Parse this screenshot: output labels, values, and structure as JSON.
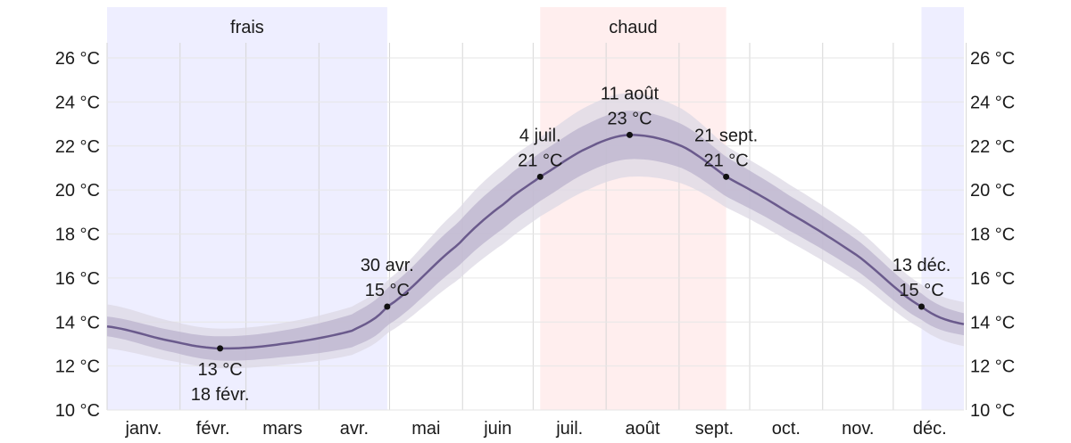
{
  "chart_data": {
    "type": "area",
    "title": "",
    "xlabel": "",
    "ylabel": "",
    "y_unit": "°C",
    "ylim": [
      10,
      26
    ],
    "y_ticks": [
      {
        "value": 10,
        "label": "10 °C"
      },
      {
        "value": 12,
        "label": "12 °C"
      },
      {
        "value": 14,
        "label": "14 °C"
      },
      {
        "value": 16,
        "label": "16 °C"
      },
      {
        "value": 18,
        "label": "18 °C"
      },
      {
        "value": 20,
        "label": "20 °C"
      },
      {
        "value": 22,
        "label": "22 °C"
      },
      {
        "value": 24,
        "label": "24 °C"
      },
      {
        "value": 26,
        "label": "26 °C"
      }
    ],
    "months": [
      "janv.",
      "févr.",
      "mars",
      "avr.",
      "mai",
      "juin",
      "juil.",
      "août",
      "sept.",
      "oct.",
      "nov.",
      "déc."
    ],
    "seasons": [
      {
        "name": "frais",
        "start_day": 1,
        "end_day": 120,
        "color": "#eeeeff",
        "label": "frais"
      },
      {
        "name": "chaud",
        "start_day": 185,
        "end_day": 264,
        "color": "#ffeeee",
        "label": "chaud"
      },
      {
        "name": "frais",
        "start_day": 347,
        "end_day": 365,
        "color": "#eeeeff",
        "label": ""
      }
    ],
    "series": [
      {
        "name": "",
        "color": "#6a5a8c",
        "x_day": [
          1,
          30,
          49,
          75,
          105,
          120,
          150,
          170,
          185,
          205,
          223,
          245,
          264,
          290,
          320,
          347,
          365
        ],
        "values": [
          13.8,
          13.1,
          12.8,
          13.0,
          13.6,
          14.7,
          17.5,
          19.4,
          20.6,
          21.9,
          22.5,
          22.0,
          20.6,
          19.0,
          17.0,
          14.7,
          13.9
        ],
        "band_inner_half_width": [
          0.45,
          0.5,
          0.55,
          0.6,
          0.75,
          0.85,
          1.0,
          1.1,
          1.1,
          1.1,
          1.1,
          1.0,
          0.9,
          0.8,
          0.7,
          0.6,
          0.5
        ],
        "band_outer_half_width": [
          1.0,
          0.9,
          0.9,
          0.95,
          1.1,
          1.2,
          1.6,
          1.8,
          1.8,
          1.9,
          1.9,
          1.7,
          1.4,
          1.3,
          1.2,
          1.0,
          1.0
        ]
      }
    ],
    "annotations": [
      {
        "day": 49,
        "value": 12.8,
        "date": "18 févr.",
        "temp": "13 °C",
        "position": "below"
      },
      {
        "day": 120,
        "value": 14.7,
        "date": "30 avr.",
        "temp": "15 °C",
        "position": "above"
      },
      {
        "day": 185,
        "value": 20.6,
        "date": "4 juil.",
        "temp": "21 °C",
        "position": "above"
      },
      {
        "day": 223,
        "value": 22.5,
        "date": "11 août",
        "temp": "23 °C",
        "position": "above"
      },
      {
        "day": 264,
        "value": 20.6,
        "date": "21 sept.",
        "temp": "21 °C",
        "position": "above"
      },
      {
        "day": 347,
        "value": 14.7,
        "date": "13 déc.",
        "temp": "15 °C",
        "position": "above"
      }
    ],
    "grid": true,
    "colors": {
      "cold_season": "#eeeeff",
      "hot_season": "#ffeeee",
      "line": "#6a5a8c",
      "band_inner": "#b9b0cc",
      "band_outer": "#dcd8e4",
      "grid": "#d6d6d6"
    }
  }
}
